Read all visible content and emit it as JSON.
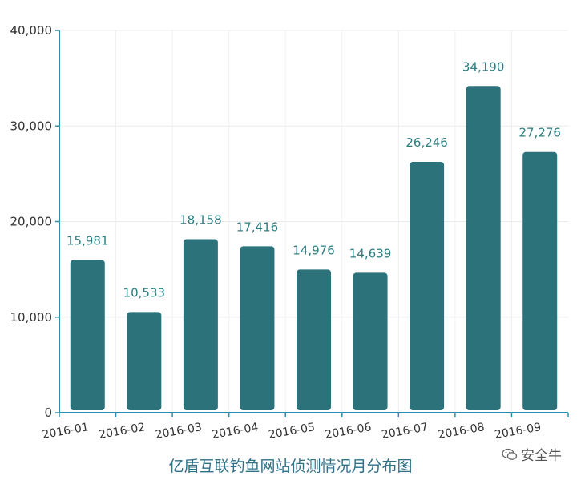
{
  "chart_data": {
    "type": "bar",
    "title": "亿盾互联钓鱼网站侦测情况月分布图",
    "categories": [
      "2016-01",
      "2016-02",
      "2016-03",
      "2016-04",
      "2016-05",
      "2016-06",
      "2016-07",
      "2016-08",
      "2016-09"
    ],
    "values": [
      15981,
      10533,
      18158,
      17416,
      14976,
      14639,
      26246,
      34190,
      27276
    ],
    "value_labels": [
      "15,981",
      "10,533",
      "18,158",
      "17,416",
      "14,976",
      "14,639",
      "26,246",
      "34,190",
      "27,276"
    ],
    "ylim": [
      0,
      40000
    ],
    "yticks": [
      "0",
      "10,000",
      "20,000",
      "30,000",
      "40,000"
    ],
    "grid": true,
    "bar_color": "#2b727a",
    "label_color": "#2e7d80",
    "axis_color": "#2a8fb0"
  },
  "watermark": {
    "text": "安全牛",
    "icon": "wechat-icon"
  }
}
